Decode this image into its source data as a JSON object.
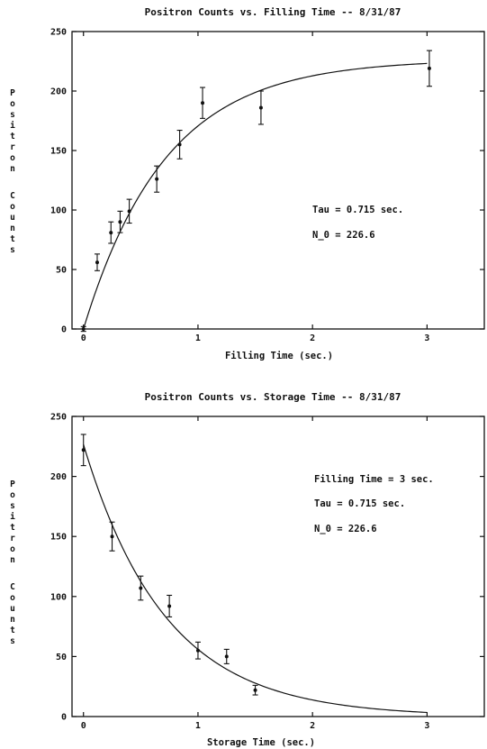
{
  "chart_data": [
    {
      "type": "scatter",
      "title": "Positron Counts vs. Filling Time -- 8/31/87",
      "xlabel": "Filling Time (sec.)",
      "ylabel": "Positron Counts",
      "xlim": [
        -0.1,
        3.5
      ],
      "ylim": [
        0,
        250
      ],
      "x_ticks": [
        0,
        1,
        2,
        3
      ],
      "x_tick_labels": [
        "0",
        "1",
        "2",
        "3"
      ],
      "y_ticks": [
        0,
        50,
        100,
        150,
        200,
        250
      ],
      "y_tick_labels": [
        "0",
        "50",
        "100",
        "150",
        "200",
        "250"
      ],
      "grid": false,
      "annotations": [
        "Tau = 0.715 sec.",
        "N_0 = 226.6"
      ],
      "series": [
        {
          "x": [
            0.0,
            0.12,
            0.24,
            0.32,
            0.4,
            0.64,
            0.84,
            1.04,
            1.55,
            3.02
          ],
          "y": [
            0,
            56,
            81,
            90,
            99,
            126,
            155,
            190,
            186,
            219
          ],
          "err": [
            2,
            7,
            9,
            9,
            10,
            11,
            12,
            13,
            14,
            15
          ]
        },
        {
          "type": "line",
          "function": "226.6*(1-exp(-x/0.715))",
          "x_range": [
            0,
            3
          ]
        }
      ]
    },
    {
      "type": "scatter",
      "title": "Positron Counts vs. Storage Time -- 8/31/87",
      "xlabel": "Storage Time (sec.)",
      "ylabel": "Positron Counts",
      "xlim": [
        -0.1,
        3.5
      ],
      "ylim": [
        0,
        250
      ],
      "x_ticks": [
        0,
        1,
        2,
        3
      ],
      "x_tick_labels": [
        "0",
        "1",
        "2",
        "3"
      ],
      "y_ticks": [
        0,
        50,
        100,
        150,
        200,
        250
      ],
      "y_tick_labels": [
        "0",
        "50",
        "100",
        "150",
        "200",
        "250"
      ],
      "grid": false,
      "annotations": [
        "Filling Time = 3 sec.",
        "Tau = 0.715 sec.",
        "N_0 = 226.6"
      ],
      "series": [
        {
          "x": [
            0.0,
            0.25,
            0.5,
            0.75,
            1.0,
            1.25,
            1.5
          ],
          "y": [
            222,
            150,
            107,
            92,
            55,
            50,
            22
          ],
          "err": [
            13,
            12,
            10,
            9,
            7,
            6,
            4
          ]
        },
        {
          "type": "line",
          "function": "226.6*exp(-x/0.715)",
          "x_range": [
            0,
            3
          ]
        }
      ]
    }
  ]
}
